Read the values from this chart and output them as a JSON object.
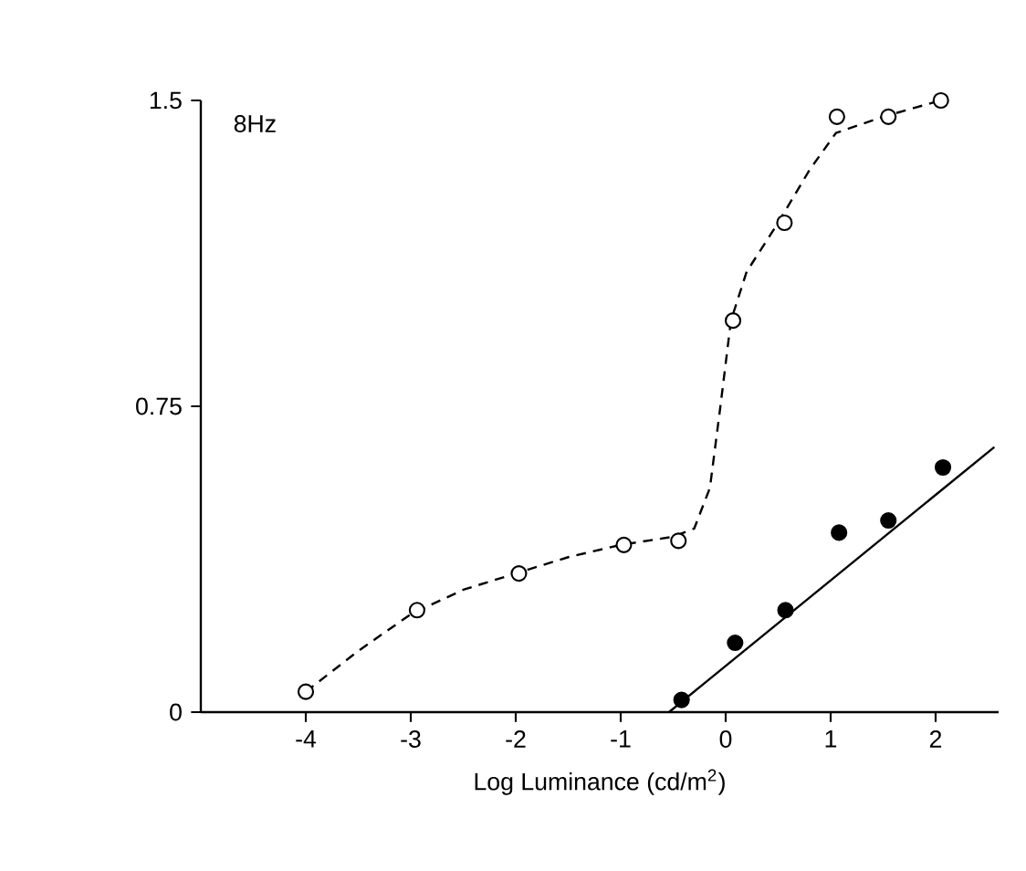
{
  "chart_data": {
    "type": "scatter",
    "xlabel": "Log Luminance (cd/m$^{2}$)",
    "annotations": [
      "8Hz"
    ],
    "xlim": [
      -5,
      2.6
    ],
    "ylim": [
      0,
      1.5
    ],
    "xticks": [
      -4,
      -3,
      -2,
      -1,
      0,
      1,
      2
    ],
    "yticks": [
      0,
      0.75,
      1.5
    ],
    "grid": false,
    "series": [
      {
        "type": "line",
        "color": "#000000",
        "line_style": "dashed",
        "marker": "none",
        "x": [
          -4,
          -3.5,
          -3,
          -2.5,
          -2,
          -1.5,
          -1,
          -0.5,
          -0.3,
          -0.15,
          -0.05,
          0.05,
          0.2,
          0.5,
          0.8,
          1.05,
          1.5,
          2.05
        ],
        "values": [
          0.05,
          0.15,
          0.24,
          0.3,
          0.34,
          0.38,
          0.41,
          0.43,
          0.45,
          0.55,
          0.75,
          0.96,
          1.08,
          1.2,
          1.33,
          1.42,
          1.46,
          1.5
        ]
      },
      {
        "type": "line",
        "color": "#000000",
        "line_style": "solid",
        "marker": "none",
        "x": [
          -0.54,
          2.56
        ],
        "values": [
          0,
          0.65
        ]
      },
      {
        "type": "scatter",
        "color": "#ffffff",
        "marker": "circle",
        "x": [
          -4,
          -2.94,
          -1.97,
          -0.97,
          -0.45,
          0.07,
          0.56,
          1.06,
          1.55,
          2.05
        ],
        "values": [
          0.05,
          0.25,
          0.34,
          0.41,
          0.42,
          0.96,
          1.2,
          1.46,
          1.46,
          1.5
        ]
      },
      {
        "type": "scatter",
        "color": "#000000",
        "marker": "circle",
        "x": [
          -0.42,
          0.09,
          0.57,
          1.08,
          1.55,
          2.07
        ],
        "values": [
          0.03,
          0.17,
          0.25,
          0.44,
          0.47,
          0.6
        ]
      }
    ]
  }
}
